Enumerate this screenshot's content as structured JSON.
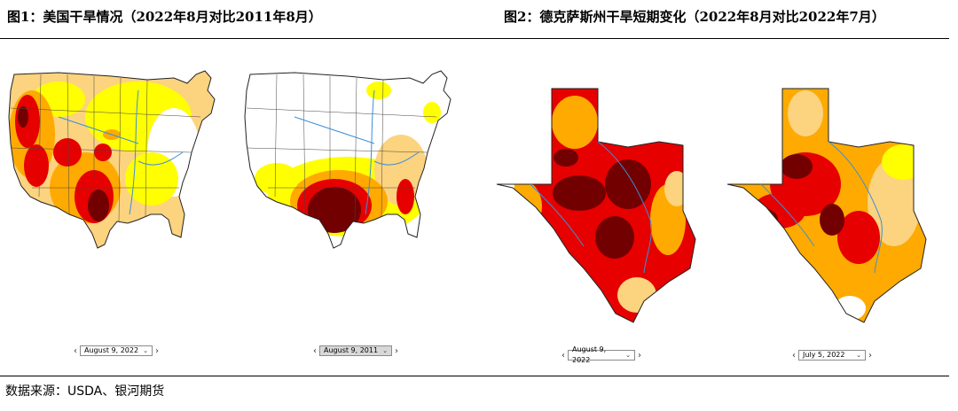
{
  "figure1": {
    "title": "图1：美国干旱情况（2022年8月对比2011年8月）",
    "map_left": {
      "date": "August 9, 2022"
    },
    "map_right": {
      "date": "August 9, 2011"
    }
  },
  "figure2": {
    "title": "图2：德克萨斯州干旱短期变化（2022年8月对比2022年7月）",
    "map_left": {
      "date": "August 9, 2022"
    },
    "map_right": {
      "date": "July 5, 2022"
    }
  },
  "source": "数据来源：USDA、银河期货",
  "icons": {
    "prev": "chevron-left-icon",
    "next": "chevron-right-icon",
    "dropdown": "chevron-down-icon"
  },
  "colors": {
    "abnormally_dry": "#ffff00",
    "moderate": "#fcd37f",
    "severe": "#ffaa00",
    "extreme": "#e60000",
    "exceptional": "#730000",
    "none": "#ffffff"
  }
}
